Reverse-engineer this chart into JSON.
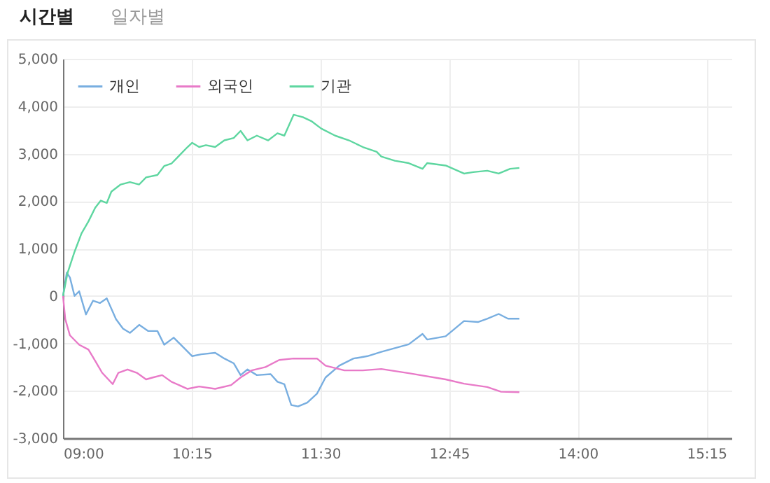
{
  "chart_data": {
    "type": "line",
    "annotations": [
      "시간별",
      "일자별"
    ],
    "xlim": [
      9,
      15.5
    ],
    "xticks": [
      {
        "value": 9,
        "label": "09:00"
      },
      {
        "value": 10.25,
        "label": "10:15"
      },
      {
        "value": 11.5,
        "label": "11:30"
      },
      {
        "value": 12.75,
        "label": "12:45"
      },
      {
        "value": 14,
        "label": "14:00"
      },
      {
        "value": 15.25,
        "label": "15:15"
      }
    ],
    "ylim": [
      -3000,
      5000
    ],
    "yticks": [
      {
        "value": -3000,
        "label": "-3,000"
      },
      {
        "value": -2000,
        "label": "-2,000"
      },
      {
        "value": -1000,
        "label": "-1,000"
      },
      0,
      {
        "value": 1000,
        "label": "1,000"
      },
      {
        "value": 2000,
        "label": "2,000"
      },
      {
        "value": 3000,
        "label": "3,000"
      },
      {
        "value": 4000,
        "label": "4,000"
      },
      {
        "value": 5000,
        "label": "5,000"
      }
    ],
    "grid": true,
    "legend": "top left",
    "series": [
      {
        "name": "개인",
        "color": "#78aee0",
        "x": [
          9,
          9.037,
          9.067,
          9.112,
          9.157,
          9.223,
          9.292,
          9.358,
          9.425,
          9.515,
          9.583,
          9.65,
          9.74,
          9.828,
          9.917,
          9.983,
          10.075,
          10.167,
          10.255,
          10.343,
          10.478,
          10.567,
          10.658,
          10.725,
          10.792,
          10.883,
          11.017,
          11.083,
          11.15,
          11.217,
          11.283,
          11.373,
          11.467,
          11.55,
          11.683,
          11.822,
          11.957,
          12.092,
          12.358,
          12.492,
          12.537,
          12.717,
          12.895,
          13.03,
          13.12,
          13.232,
          13.322,
          13.433
        ],
        "values": [
          0,
          490,
          390,
          0,
          100,
          -390,
          -100,
          -150,
          -50,
          -490,
          -690,
          -780,
          -610,
          -740,
          -740,
          -1030,
          -880,
          -1080,
          -1270,
          -1230,
          -1200,
          -1320,
          -1420,
          -1670,
          -1550,
          -1670,
          -1650,
          -1810,
          -1860,
          -2300,
          -2330,
          -2250,
          -2060,
          -1720,
          -1470,
          -1320,
          -1270,
          -1180,
          -1020,
          -800,
          -920,
          -850,
          -530,
          -550,
          -480,
          -380,
          -480,
          -480
        ]
      },
      {
        "name": "외국인",
        "color": "#e87ac8",
        "x": [
          9,
          9.022,
          9.067,
          9.157,
          9.247,
          9.313,
          9.38,
          9.483,
          9.538,
          9.627,
          9.717,
          9.807,
          9.873,
          9.963,
          10.053,
          10.21,
          10.322,
          10.478,
          10.633,
          10.725,
          10.833,
          10.967,
          11.1,
          11.24,
          11.467,
          11.55,
          11.733,
          11.912,
          12.092,
          12.358,
          12.717,
          12.895,
          13.12,
          13.255,
          13.433
        ],
        "values": [
          0,
          -490,
          -830,
          -1030,
          -1130,
          -1370,
          -1620,
          -1860,
          -1620,
          -1550,
          -1620,
          -1760,
          -1720,
          -1670,
          -1810,
          -1960,
          -1910,
          -1960,
          -1880,
          -1720,
          -1570,
          -1500,
          -1350,
          -1320,
          -1320,
          -1470,
          -1570,
          -1570,
          -1540,
          -1630,
          -1760,
          -1850,
          -1920,
          -2020,
          -2030
        ]
      },
      {
        "name": "기관",
        "color": "#5ed6a0",
        "x": [
          9,
          9.045,
          9.112,
          9.18,
          9.247,
          9.313,
          9.367,
          9.425,
          9.47,
          9.56,
          9.65,
          9.74,
          9.807,
          9.917,
          9.983,
          10.053,
          10.12,
          10.21,
          10.255,
          10.322,
          10.388,
          10.478,
          10.567,
          10.658,
          10.725,
          10.792,
          10.883,
          10.993,
          11.083,
          11.15,
          11.24,
          11.33,
          11.417,
          11.508,
          11.643,
          11.778,
          11.912,
          12.047,
          12.092,
          12.223,
          12.358,
          12.492,
          12.537,
          12.717,
          12.895,
          12.985,
          13.12,
          13.232,
          13.343,
          13.433
        ],
        "values": [
          0,
          490,
          930,
          1320,
          1570,
          1860,
          2010,
          1960,
          2200,
          2350,
          2400,
          2350,
          2500,
          2550,
          2740,
          2790,
          2940,
          3140,
          3230,
          3140,
          3180,
          3140,
          3280,
          3330,
          3480,
          3280,
          3380,
          3280,
          3430,
          3380,
          3820,
          3770,
          3680,
          3530,
          3380,
          3280,
          3140,
          3040,
          2940,
          2850,
          2800,
          2680,
          2800,
          2750,
          2580,
          2610,
          2640,
          2580,
          2680,
          2700
        ]
      }
    ]
  }
}
